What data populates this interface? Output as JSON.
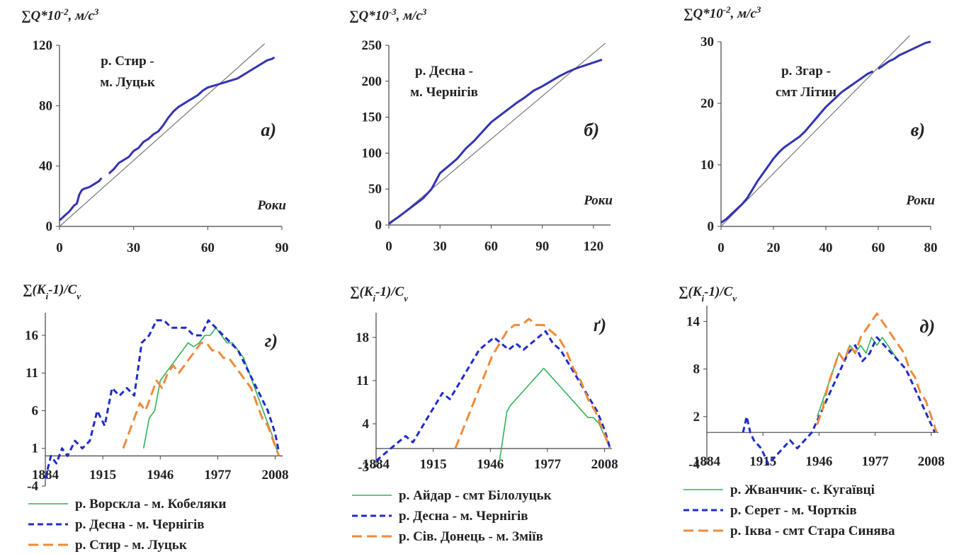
{
  "chart_data": [
    {
      "panel": "а)",
      "type": "line",
      "ylabel": "∑Q*10",
      "ylabel_sup": "-2",
      "ylabel_unit": ", м/с",
      "ylabel_unit_sup": "3",
      "annotation": [
        "р. Стир -",
        "м. Луцьк"
      ],
      "xname": "Роки",
      "xlim": [
        0,
        90
      ],
      "ylim": [
        0,
        120
      ],
      "xticks": [
        "0",
        "30",
        "60",
        "90"
      ],
      "yticks": [
        "0",
        "40",
        "80",
        "120"
      ],
      "colors": {
        "series": "#3333b3",
        "diagonal": "#777777"
      },
      "diagonal": {
        "x": [
          0,
          83
        ],
        "y": [
          0,
          121
        ]
      },
      "series": [
        {
          "x": [
            0,
            2,
            4,
            6,
            7,
            8,
            9,
            10,
            12,
            14,
            16,
            17
          ],
          "y": [
            4,
            7,
            10,
            14,
            15,
            21,
            24,
            25,
            26,
            28,
            30,
            32
          ]
        },
        {
          "x": [
            20,
            22,
            24,
            26,
            28,
            30,
            32,
            34,
            36,
            38,
            40,
            42,
            44,
            46,
            48,
            50,
            52,
            54,
            56,
            58,
            60,
            62,
            64,
            66,
            68,
            70,
            72,
            74,
            76,
            78,
            80,
            82,
            84,
            86,
            87
          ],
          "y": [
            35,
            38,
            42,
            44,
            46,
            50,
            52,
            56,
            58,
            61,
            63,
            67,
            72,
            76,
            79,
            81,
            83,
            85,
            87,
            90,
            92,
            93,
            94,
            95,
            96,
            97,
            98,
            100,
            102,
            104,
            106,
            108,
            110,
            111,
            112
          ]
        }
      ]
    },
    {
      "panel": "б)",
      "type": "line",
      "ylabel": "∑Q*10",
      "ylabel_sup": "-3",
      "ylabel_unit": ", м/с",
      "ylabel_unit_sup": "3",
      "annotation": [
        "р. Десна -",
        "м. Чернігів"
      ],
      "xname": "Роки",
      "xlim": [
        0,
        130
      ],
      "ylim": [
        0,
        250
      ],
      "xticks": [
        "0",
        "30",
        "60",
        "90",
        "120"
      ],
      "yticks": [
        "0",
        "50",
        "100",
        "150",
        "200",
        "250"
      ],
      "colors": {
        "series": "#3333b3",
        "diagonal": "#777777"
      },
      "diagonal": {
        "x": [
          0,
          127
        ],
        "y": [
          0,
          253
        ]
      },
      "series": [
        {
          "x": [
            0,
            5,
            10,
            15,
            20,
            25,
            30,
            35,
            40,
            45,
            50,
            55,
            60,
            65,
            70,
            75,
            80,
            85,
            90,
            95,
            100,
            105,
            110,
            115,
            120,
            125
          ],
          "y": [
            2,
            10,
            19,
            28,
            37,
            50,
            72,
            82,
            92,
            106,
            117,
            130,
            143,
            152,
            161,
            170,
            178,
            187,
            193,
            200,
            207,
            213,
            218,
            222,
            226,
            230
          ]
        }
      ]
    },
    {
      "panel": "в)",
      "type": "line",
      "ylabel": "∑Q*10",
      "ylabel_sup": "-2",
      "ylabel_unit": ", м/с",
      "ylabel_unit_sup": "3",
      "annotation": [
        "р. Згар -",
        "смт Літин"
      ],
      "xname": "Роки",
      "xlim": [
        0,
        80
      ],
      "ylim": [
        0,
        30
      ],
      "xticks": [
        "0",
        "20",
        "40",
        "60",
        "80"
      ],
      "yticks": [
        "0",
        "10",
        "20",
        "30"
      ],
      "colors": {
        "series": "#3333b3",
        "diagonal": "#777777"
      },
      "diagonal": {
        "x": [
          0,
          72
        ],
        "y": [
          0,
          31
        ]
      },
      "series": [
        {
          "x": [
            0,
            2,
            4,
            6,
            8,
            10,
            12,
            14,
            16,
            18,
            20,
            22,
            24,
            26,
            28,
            30,
            32,
            34,
            36,
            38,
            40,
            42,
            44,
            46,
            48,
            50,
            52,
            54,
            56,
            58
          ],
          "y": [
            0.6,
            1.2,
            2,
            2.8,
            3.6,
            4.6,
            6,
            7.4,
            8.6,
            9.8,
            11,
            12,
            12.8,
            13.4,
            14,
            14.6,
            15.4,
            16.4,
            17.4,
            18.4,
            19.4,
            20.2,
            21,
            21.8,
            22.4,
            23,
            23.6,
            24.2,
            24.8,
            25.2
          ]
        },
        {
          "x": [
            60,
            62,
            64,
            66,
            68,
            70,
            72,
            74,
            76,
            78,
            80
          ],
          "y": [
            25.6,
            26.2,
            26.8,
            27.2,
            27.8,
            28.2,
            28.6,
            29,
            29.4,
            29.8,
            30
          ]
        }
      ]
    },
    {
      "panel": "г)",
      "type": "line",
      "ylabel": "∑(K",
      "ylabel_sub": "i",
      "ylabel_unit": "-1)/C",
      "ylabel_unit_sub": "v",
      "xlim": [
        1884,
        2012
      ],
      "ylim": [
        -4,
        19
      ],
      "xticks": [
        "1884",
        "1915",
        "1946",
        "1977",
        "2008"
      ],
      "yticks": [
        "-4",
        "1",
        "6",
        "11",
        "16"
      ],
      "series": [
        {
          "name": "р. Ворскла - м. Кобеляки",
          "color": "#33b357",
          "dash": "solid",
          "x": [
            1937,
            1940,
            1943,
            1946,
            1949,
            1952,
            1955,
            1958,
            1961,
            1964,
            1967,
            1970,
            1973,
            1976,
            1979,
            1982,
            1985,
            1988,
            1991,
            1994,
            1997,
            2000,
            2003,
            2006,
            2008,
            2010
          ],
          "y": [
            1,
            5,
            6,
            10,
            11,
            12,
            13,
            14,
            15,
            14.5,
            15,
            16,
            16,
            17,
            16,
            15,
            15,
            14,
            13,
            11,
            9,
            7,
            5,
            3,
            1.5,
            0
          ]
        },
        {
          "name": "р. Десна - м. Чернігів",
          "color": "#1f2cc9",
          "dash": "8,5",
          "x": [
            1884,
            1887,
            1890,
            1893,
            1896,
            1900,
            1904,
            1908,
            1912,
            1916,
            1920,
            1924,
            1928,
            1932,
            1936,
            1940,
            1944,
            1948,
            1952,
            1956,
            1960,
            1964,
            1968,
            1972,
            1976,
            1980,
            1984,
            1988,
            1992,
            1996,
            2000,
            2004,
            2008,
            2010
          ],
          "y": [
            -3,
            0,
            -1,
            1,
            0,
            2,
            1,
            2,
            6,
            4,
            9,
            8,
            9,
            8,
            15,
            16,
            18,
            18,
            17,
            17,
            17,
            16,
            16,
            18,
            17,
            16,
            15,
            14,
            12,
            10,
            8,
            6,
            3,
            0.5
          ]
        },
        {
          "name": "р. Стир - м. Луцьк",
          "color": "#f08a3a",
          "dash": "14,7",
          "x": [
            1926,
            1929,
            1932,
            1935,
            1938,
            1941,
            1944,
            1947,
            1950,
            1953,
            1956,
            1959,
            1962,
            1965,
            1968,
            1971,
            1974,
            1977,
            1980,
            1983,
            1986,
            1989,
            1992,
            1995,
            1998,
            2001,
            2004,
            2007,
            2010
          ],
          "y": [
            1,
            3,
            5,
            7,
            6,
            8,
            10,
            9,
            11,
            12,
            11,
            12,
            13,
            14,
            15,
            15,
            14,
            14,
            13,
            13,
            12,
            11,
            10,
            9,
            7,
            5,
            4,
            2,
            0
          ]
        }
      ]
    },
    {
      "panel": "ґ)",
      "type": "line",
      "ylabel": "∑(K",
      "ylabel_sub": "i",
      "ylabel_unit": "-1)/C",
      "ylabel_unit_sub": "v",
      "xlim": [
        1884,
        2012
      ],
      "ylim": [
        -3,
        22
      ],
      "xticks": [
        "1884",
        "1915",
        "1946",
        "1977",
        "2008"
      ],
      "yticks": [
        "-3",
        "4",
        "11",
        "18"
      ],
      "series": [
        {
          "name": "р. Айдар - смт Білолуцьк",
          "color": "#33b357",
          "dash": "solid",
          "x": [
            1951,
            1953,
            1955,
            1957,
            1960,
            1963,
            1966,
            1969,
            1972,
            1975,
            1978,
            1981,
            1984,
            1987,
            1990,
            1993,
            1996,
            1999,
            2002,
            2005,
            2008,
            2011
          ],
          "y": [
            -2,
            2,
            6,
            7,
            8,
            9,
            10,
            11,
            12,
            13,
            12,
            11,
            10,
            9,
            8,
            7,
            6,
            5,
            5,
            4,
            2,
            0
          ]
        },
        {
          "name": "р. Десна - м. Чернігів",
          "color": "#1f2cc9",
          "dash": "8,5",
          "x": [
            1884,
            1888,
            1892,
            1896,
            1900,
            1904,
            1908,
            1912,
            1916,
            1920,
            1924,
            1928,
            1932,
            1936,
            1940,
            1944,
            1948,
            1952,
            1956,
            1960,
            1964,
            1968,
            1972,
            1976,
            1980,
            1984,
            1988,
            1992,
            1996,
            2000,
            2004,
            2008,
            2011
          ],
          "y": [
            -2,
            -1,
            0,
            1,
            2,
            1,
            3,
            5,
            7,
            9,
            8,
            10,
            12,
            14,
            16,
            17,
            18,
            17,
            16,
            17,
            16,
            17,
            18,
            19,
            17,
            16,
            14,
            12,
            10,
            8,
            6,
            3,
            0
          ]
        },
        {
          "name": "р. Сів. Донець - м. Зміїв",
          "color": "#f08a3a",
          "dash": "14,7",
          "x": [
            1927,
            1931,
            1935,
            1939,
            1943,
            1947,
            1951,
            1955,
            1959,
            1963,
            1967,
            1971,
            1975,
            1979,
            1983,
            1987,
            1991,
            1995,
            1999,
            2003,
            2007,
            2011
          ],
          "y": [
            0,
            3,
            6,
            9,
            12,
            15,
            17,
            19,
            20,
            20,
            21,
            20,
            20,
            19,
            18,
            16,
            13,
            11,
            8,
            6,
            3,
            0
          ]
        }
      ]
    },
    {
      "panel": "д)",
      "type": "line",
      "ylabel": "∑(K",
      "ylabel_sub": "i",
      "ylabel_unit": "-1)/C",
      "ylabel_unit_sub": "v",
      "xlim": [
        1884,
        2012
      ],
      "ylim": [
        -4,
        16
      ],
      "xticks": [
        "1884",
        "1915",
        "1946",
        "1977",
        "2008"
      ],
      "yticks": [
        "-4",
        "2",
        "8",
        "14"
      ],
      "series": [
        {
          "name": "р. Жванчик- с. Кугаївці",
          "color": "#33b357",
          "dash": "solid",
          "x": [
            1945,
            1948,
            1951,
            1954,
            1957,
            1960,
            1963,
            1966,
            1969,
            1972,
            1975,
            1978,
            1981,
            1984,
            1987,
            1990
          ],
          "y": [
            2,
            4,
            6,
            8,
            10,
            9,
            11,
            10,
            11,
            10,
            12,
            11,
            12,
            11,
            10,
            9
          ]
        },
        {
          "name": "р. Серет - м. Чортків",
          "color": "#1f2cc9",
          "dash": "8,5",
          "x": [
            1904,
            1906,
            1908,
            1910,
            1914,
            1918,
            1922,
            1926,
            1930,
            1934,
            1938,
            1942,
            1946,
            1950,
            1954,
            1958,
            1962,
            1966,
            1970,
            1974,
            1978,
            1982,
            1986,
            1990,
            1994,
            1998,
            2002,
            2006,
            2010
          ],
          "y": [
            0,
            2,
            0,
            -1,
            -2,
            -4,
            -3,
            -2,
            -1,
            -2,
            -1,
            0,
            2,
            4,
            6,
            8,
            10,
            11,
            9,
            10,
            12,
            11,
            10,
            9,
            8,
            6,
            4,
            2,
            0
          ]
        },
        {
          "name": "р. Іква - смт Стара Синява",
          "color": "#f08a3a",
          "dash": "14,7",
          "x": [
            1945,
            1948,
            1951,
            1954,
            1957,
            1960,
            1963,
            1966,
            1969,
            1972,
            1975,
            1978,
            1981,
            1984,
            1987,
            1990,
            1993,
            1996,
            1999,
            2002,
            2005,
            2008,
            2011
          ],
          "y": [
            1,
            3,
            6,
            8,
            10,
            9,
            11,
            10,
            12,
            13,
            14,
            15,
            14,
            13,
            12,
            11,
            10,
            8,
            7,
            5,
            4,
            2,
            0
          ]
        }
      ]
    }
  ]
}
